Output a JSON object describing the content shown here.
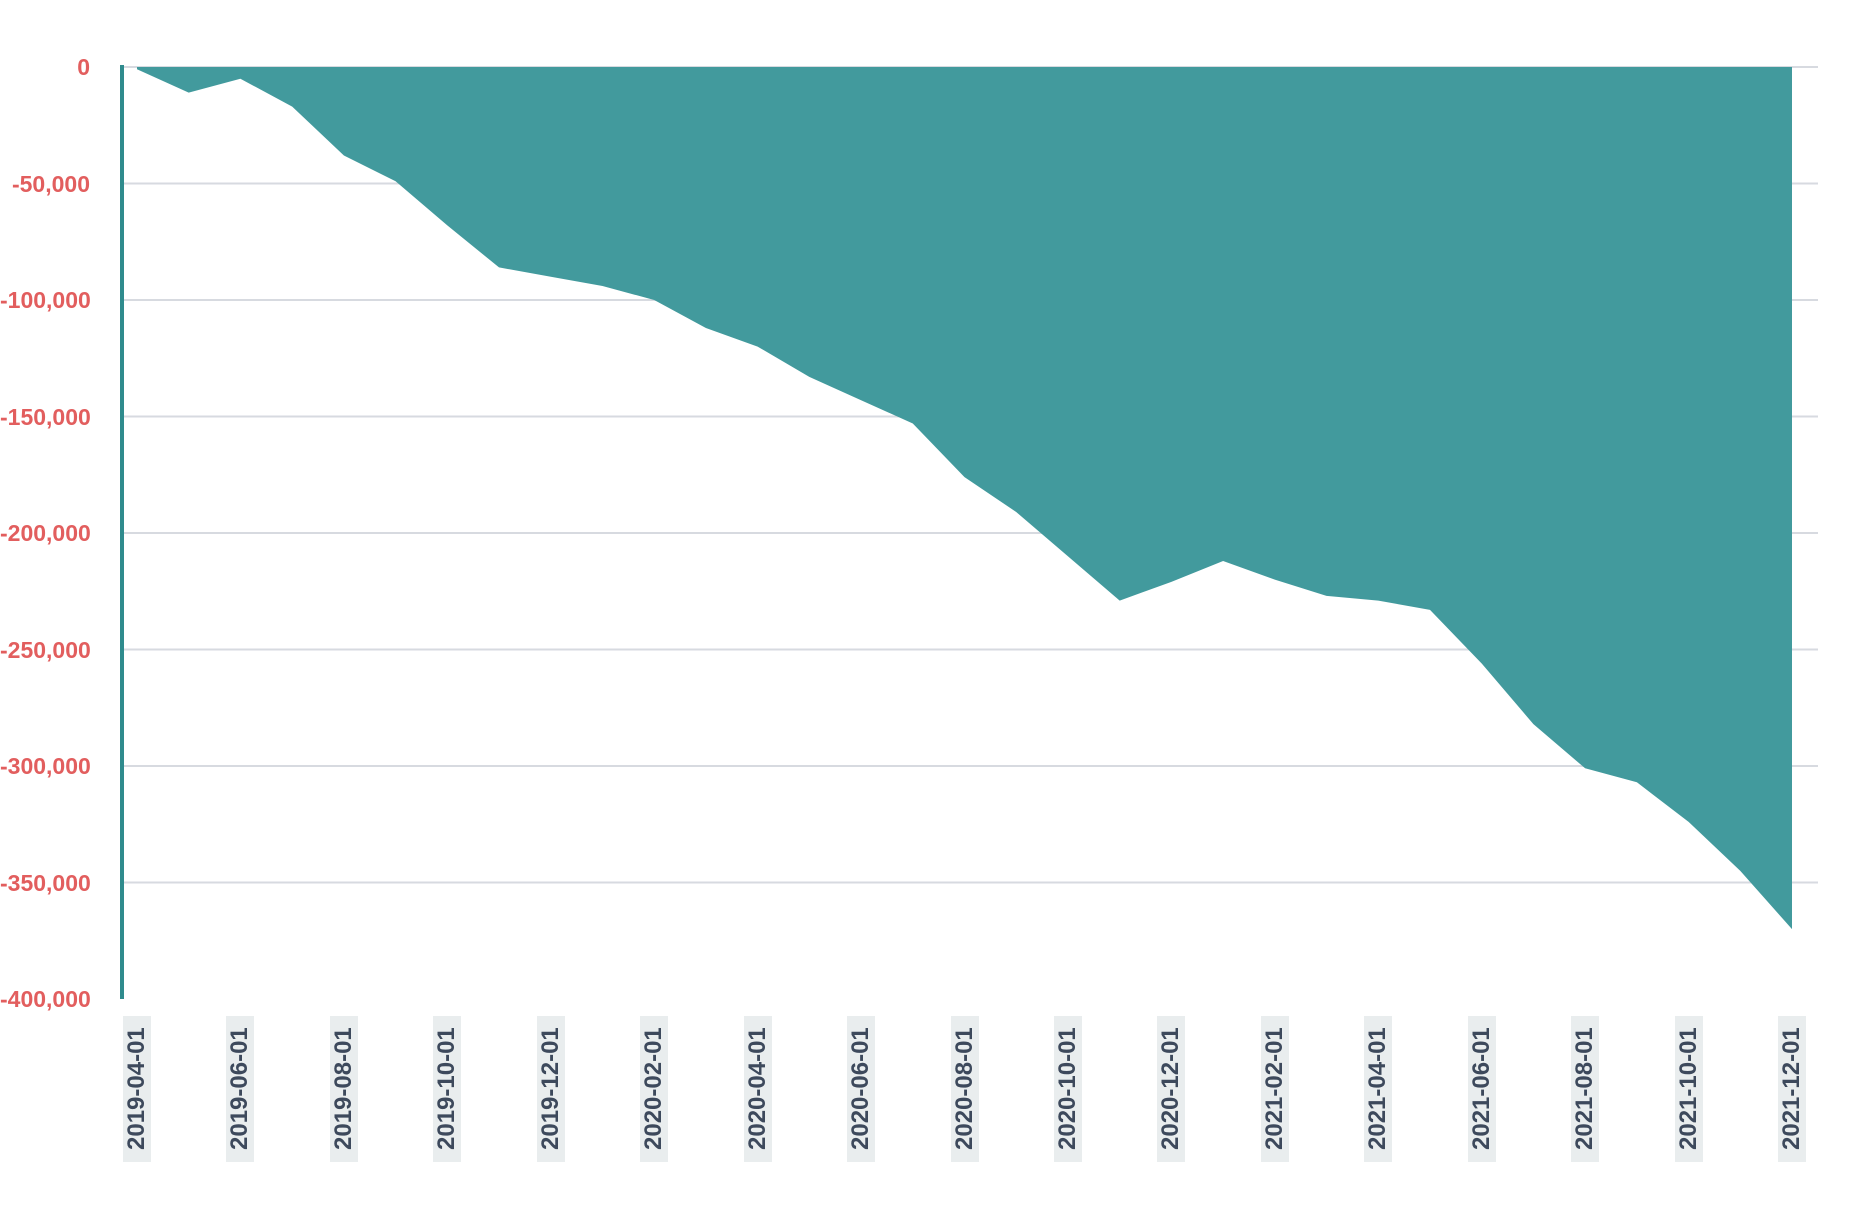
{
  "chart_data": {
    "type": "area",
    "title": "",
    "xlabel": "",
    "ylabel": "",
    "grid": "horizontal",
    "legend": "none",
    "ylim": [
      -400000,
      0
    ],
    "dates": [
      "2019-04-01",
      "2019-05-01",
      "2019-06-01",
      "2019-07-01",
      "2019-08-01",
      "2019-09-01",
      "2019-10-01",
      "2019-11-01",
      "2019-12-01",
      "2020-01-01",
      "2020-02-01",
      "2020-03-01",
      "2020-04-01",
      "2020-05-01",
      "2020-06-01",
      "2020-07-01",
      "2020-08-01",
      "2020-09-01",
      "2020-10-01",
      "2020-11-01",
      "2020-12-01",
      "2021-01-01",
      "2021-02-01",
      "2021-03-01",
      "2021-04-01",
      "2021-05-01",
      "2021-06-01",
      "2021-07-01",
      "2021-08-01",
      "2021-09-01",
      "2021-10-01",
      "2021-11-01",
      "2021-12-01"
    ],
    "values": [
      -1000,
      -11000,
      -5000,
      -17000,
      -38000,
      -49000,
      -68000,
      -86000,
      -90000,
      -94000,
      -100000,
      -112000,
      -120000,
      -133000,
      -143000,
      -153000,
      -176000,
      -191000,
      -210000,
      -229000,
      -221000,
      -212000,
      -220000,
      -227000,
      -229000,
      -233000,
      -256000,
      -282000,
      -301000,
      -307000,
      -324000,
      -345000,
      -370000
    ],
    "x_tick_labels": [
      "2019-04-01",
      "2019-06-01",
      "2019-08-01",
      "2019-10-01",
      "2019-12-01",
      "2020-02-01",
      "2020-04-01",
      "2020-06-01",
      "2020-08-01",
      "2020-10-01",
      "2020-12-01",
      "2021-02-01",
      "2021-04-01",
      "2021-06-01",
      "2021-08-01",
      "2021-10-01",
      "2021-12-01"
    ],
    "y_ticks": [
      {
        "value": 0,
        "label": "0"
      },
      {
        "value": -50000,
        "label": "-50,000"
      },
      {
        "value": -100000,
        "label": "-100,000"
      },
      {
        "value": -150000,
        "label": "-150,000"
      },
      {
        "value": -200000,
        "label": "-200,000"
      },
      {
        "value": -250000,
        "label": "-250,000"
      },
      {
        "value": -300000,
        "label": "-300,000"
      },
      {
        "value": -350000,
        "label": "-350,000"
      },
      {
        "value": -400000,
        "label": "-400,000"
      }
    ],
    "colors": {
      "area_fill": "#429a9d",
      "axis_line": "#2f8b8d",
      "gridline": "#d7dae0",
      "y_label": "#e25e5e",
      "x_label": "#3d495c",
      "x_label_bg": "#e9edee"
    }
  }
}
